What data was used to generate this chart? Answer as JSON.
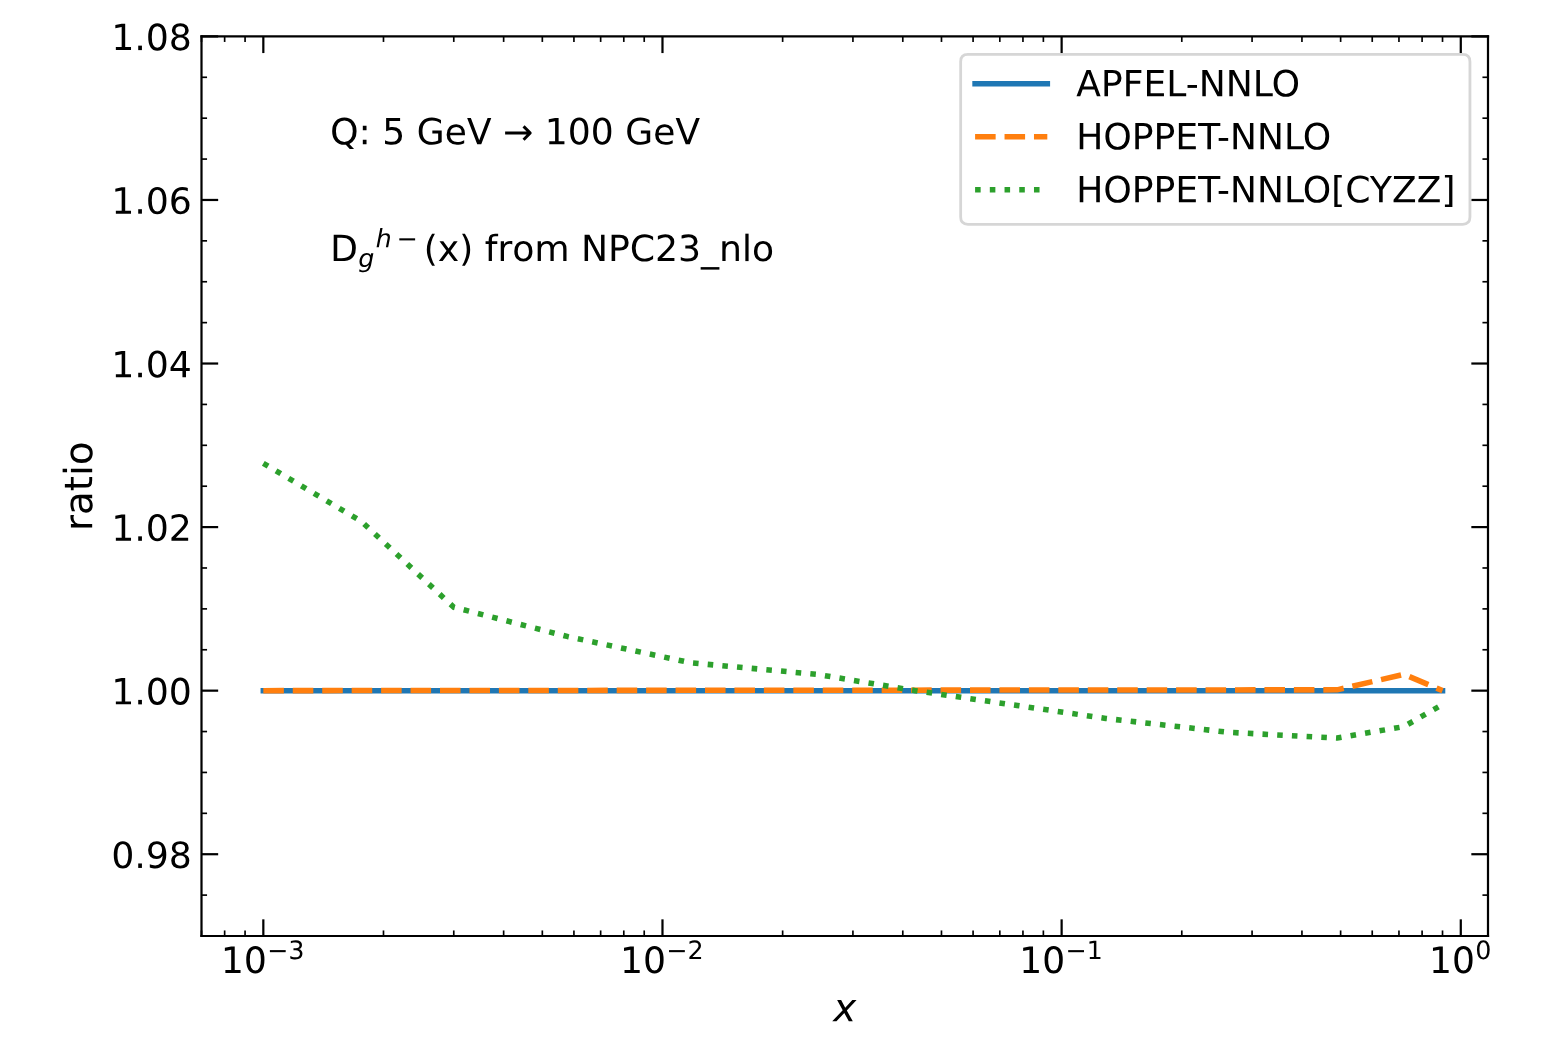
{
  "chart_data": {
    "type": "line",
    "xlabel": "x",
    "ylabel": "ratio",
    "log": "x",
    "xlim": [
      0.0007,
      1.17
    ],
    "xticks": [
      {
        "value": 0.001,
        "label": "10$^{−3}$"
      },
      {
        "value": 0.01,
        "label": "10$^{−2}$"
      },
      {
        "value": 0.1,
        "label": "10$^{−1}$"
      },
      {
        "value": 1,
        "label": "10$^{0}$"
      }
    ],
    "ylim": [
      0.97,
      1.08
    ],
    "yticks": [
      {
        "value": 0.98,
        "label": "0.98"
      },
      {
        "value": 1.0,
        "label": "1.00"
      },
      {
        "value": 1.02,
        "label": "1.02"
      },
      {
        "value": 1.04,
        "label": "1.04"
      },
      {
        "value": 1.06,
        "label": "1.06"
      },
      {
        "value": 1.08,
        "label": "1.08"
      }
    ],
    "grid": false,
    "legend": "top right",
    "annotations": [
      "Q: 5 GeV → 100 GeV",
      "D$_{g}$$^{h−}$(x) from NPC23_nlo"
    ],
    "series": [
      {
        "name": "APFEL-NNLO",
        "color": "#1f77b4",
        "line_style": "solid",
        "x": [
          0.001,
          0.9
        ],
        "values": [
          1.0,
          1.0
        ]
      },
      {
        "name": "HOPPET-NNLO",
        "color": "#ff7f0e",
        "line_style": "dashed",
        "x": [
          0.001,
          0.49,
          0.72,
          0.9
        ],
        "values": [
          1.0,
          1.0001,
          1.002,
          1.0
        ]
      },
      {
        "name": "HOPPET-NNLO[CYZZ]",
        "color": "#2ca02c",
        "line_style": "dotted",
        "x": [
          0.001,
          0.00176,
          0.003,
          0.0058,
          0.0118,
          0.0243,
          0.043,
          0.129,
          0.263,
          0.49,
          0.72,
          0.9
        ],
        "values": [
          1.0278,
          1.0207,
          1.0102,
          1.0066,
          1.0034,
          1.002,
          1.0,
          0.9966,
          0.9949,
          0.9942,
          0.9956,
          0.9983
        ]
      }
    ]
  }
}
